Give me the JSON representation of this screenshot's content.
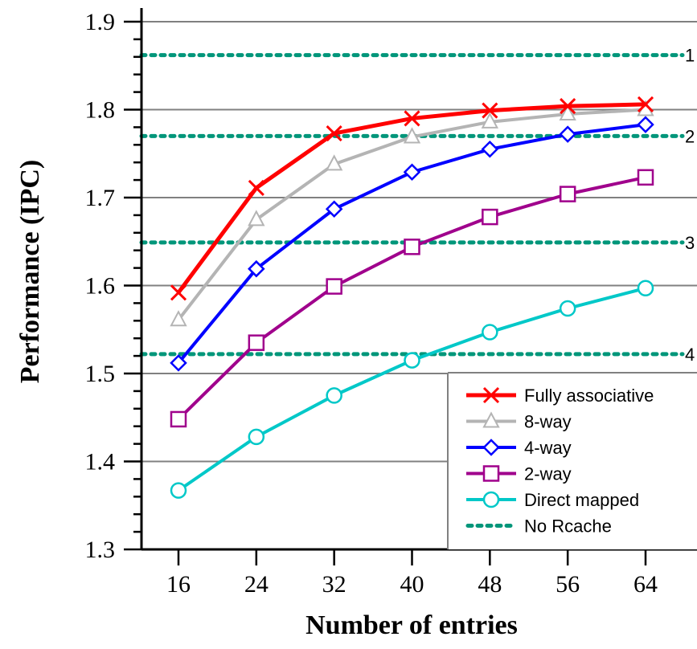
{
  "chart_data": {
    "type": "line",
    "xlabel": "Number of entries",
    "ylabel": "Performance (IPC)",
    "x": [
      16,
      24,
      32,
      40,
      48,
      56,
      64
    ],
    "xlim": [
      12,
      68
    ],
    "ylim": [
      1.3,
      1.9
    ],
    "yticks": [
      "1.3",
      "1.4",
      "1.5",
      "1.6",
      "1.7",
      "1.8",
      "1.9"
    ],
    "grid": "horizontal",
    "legend_position": "bottom-right",
    "series": [
      {
        "name": "Fully associative",
        "marker": "x",
        "color": "#ff0000",
        "values": [
          1.592,
          1.711,
          1.773,
          1.79,
          1.799,
          1.804,
          1.806
        ]
      },
      {
        "name": "8-way",
        "marker": "triangle",
        "color": "#b4b4b4",
        "values": [
          1.561,
          1.675,
          1.738,
          1.769,
          1.786,
          1.795,
          1.8
        ]
      },
      {
        "name": "4-way",
        "marker": "diamond",
        "color": "#0000ff",
        "values": [
          1.512,
          1.619,
          1.687,
          1.729,
          1.755,
          1.772,
          1.783
        ]
      },
      {
        "name": "2-way",
        "marker": "square",
        "color": "#a0008c",
        "values": [
          1.448,
          1.535,
          1.599,
          1.644,
          1.678,
          1.704,
          1.723
        ]
      },
      {
        "name": "Direct mapped",
        "marker": "circle",
        "color": "#00c8c8",
        "values": [
          1.367,
          1.428,
          1.475,
          1.515,
          1.547,
          1.574,
          1.597
        ]
      }
    ],
    "reference_lines": {
      "name": "No Rcache",
      "color": "#00967a",
      "style": "dotted",
      "lines": [
        {
          "label": "1",
          "value": 1.862
        },
        {
          "label": "2",
          "value": 1.77
        },
        {
          "label": "3",
          "value": 1.649
        },
        {
          "label": "4",
          "value": 1.522
        }
      ]
    }
  }
}
